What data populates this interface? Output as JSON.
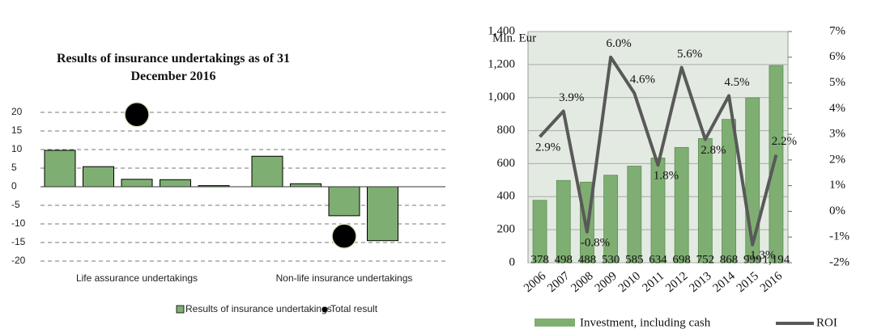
{
  "chart_data": [
    {
      "type": "bar",
      "title": "Results of insurance undertakings as of 31 December 2016",
      "categories": [
        "Life assurance undertakings",
        "Non-life insurance undertakings"
      ],
      "series": [
        {
          "name": "Results of insurance undertakings",
          "color": "#7fae72",
          "values": [
            [
              9.8,
              5.4,
              2.0,
              1.9,
              0.3
            ],
            [
              8.2,
              0.8,
              -7.8,
              -14.5
            ]
          ]
        },
        {
          "name": "Total result",
          "color": "#000000",
          "values": [
            19.4,
            -13.3
          ]
        }
      ],
      "ylim": [
        -20,
        20
      ],
      "yticks": [
        -20,
        -15,
        -10,
        -5,
        0,
        5,
        10,
        15,
        20
      ],
      "grid": true
    },
    {
      "type": "combo",
      "y_label": "Mln. Eur",
      "categories": [
        "2006",
        "2007",
        "2008",
        "2009",
        "2010",
        "2011",
        "2012",
        "2013",
        "2014",
        "2015",
        "2016"
      ],
      "series": [
        {
          "name": "Investment, including cash",
          "type": "bar",
          "color": "#7fae72",
          "values": [
            378,
            498,
            488,
            530,
            585,
            634,
            698,
            752,
            868,
            999,
            1194
          ],
          "value_labels": [
            "378",
            "498",
            "488",
            "530",
            "585",
            "634",
            "698",
            "752",
            "868",
            "999",
            "1,194"
          ]
        },
        {
          "name": "ROI",
          "type": "line",
          "axis": "y2",
          "color": "#595959",
          "values": [
            2.9,
            3.9,
            -0.8,
            6.0,
            4.6,
            1.8,
            5.6,
            2.8,
            4.5,
            -1.3,
            2.2
          ],
          "value_labels": [
            "2.9%",
            "3.9%",
            "-0.8%",
            "6.0%",
            "4.6%",
            "1.8%",
            "5.6%",
            "2.8%",
            "4.5%",
            "-1.3%",
            "2.2%"
          ]
        }
      ],
      "ylim": [
        0,
        1400
      ],
      "yticks": [
        0,
        200,
        400,
        600,
        800,
        {
          "value": 1000,
          "label": "1,000"
        },
        {
          "value": 1200,
          "label": "1,200"
        },
        {
          "value": 1400,
          "label": "1,400"
        }
      ],
      "y2lim": [
        -2,
        7
      ],
      "y2ticks": [
        {
          "value": -2,
          "label": "-2%"
        },
        {
          "value": -1,
          "label": "-1%"
        },
        {
          "value": 0,
          "label": "0%"
        },
        {
          "value": 1,
          "label": "1%"
        },
        {
          "value": 2,
          "label": "2%"
        },
        {
          "value": 3,
          "label": "3%"
        },
        {
          "value": 4,
          "label": "4%"
        },
        {
          "value": 5,
          "label": "5%"
        },
        {
          "value": 6,
          "label": "6%"
        },
        {
          "value": 7,
          "label": "7%"
        }
      ],
      "grid": true
    }
  ]
}
